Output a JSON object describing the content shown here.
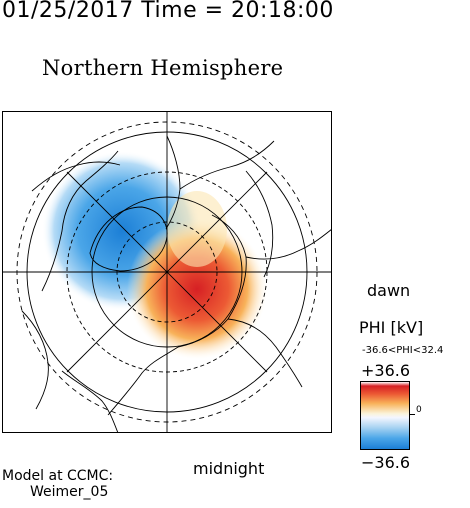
{
  "header": {
    "timestamp": "01/25/2017 Time = 20:18:00",
    "title": "Northern Hemisphere"
  },
  "orientation": {
    "right": "dawn",
    "bottom": "midnight"
  },
  "credit": {
    "line1": "Model at CCMC:",
    "line2": "Weimer_05"
  },
  "colorbar": {
    "label": "PHI [kV]",
    "range_text": "-36.6<PHI<32.4",
    "max_label": "+36.6",
    "min_label": "−36.6",
    "zero_label": "0",
    "colors": [
      "#d62024",
      "#f8b25a",
      "#ffffff",
      "#4ba6e8",
      "#1c7fd6"
    ]
  },
  "map": {
    "projection": "polar stereographic, north pole centered",
    "potential_cells": [
      {
        "sign": "negative",
        "color": "#1c7fd6",
        "sector": "pre-noon / dusk"
      },
      {
        "sign": "positive",
        "color": "#d62024",
        "sector": "post-midnight / dawn"
      }
    ]
  }
}
